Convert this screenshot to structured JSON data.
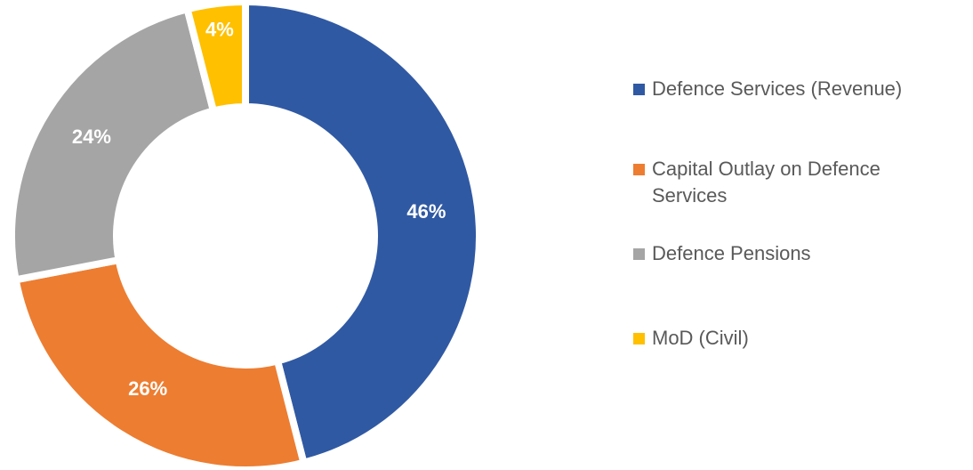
{
  "chart_data": {
    "type": "donut",
    "categories": [
      "Defence Services (Revenue)",
      "Capital Outlay on Defence Services",
      "Defence Pensions",
      "MoD (Civil)"
    ],
    "values": [
      46,
      26,
      24,
      4
    ],
    "value_labels": [
      "46%",
      "26%",
      "24%",
      "4%"
    ],
    "colors": [
      "#3059a3",
      "#ed7d31",
      "#a5a5a5",
      "#ffc000"
    ],
    "legend": "right"
  }
}
